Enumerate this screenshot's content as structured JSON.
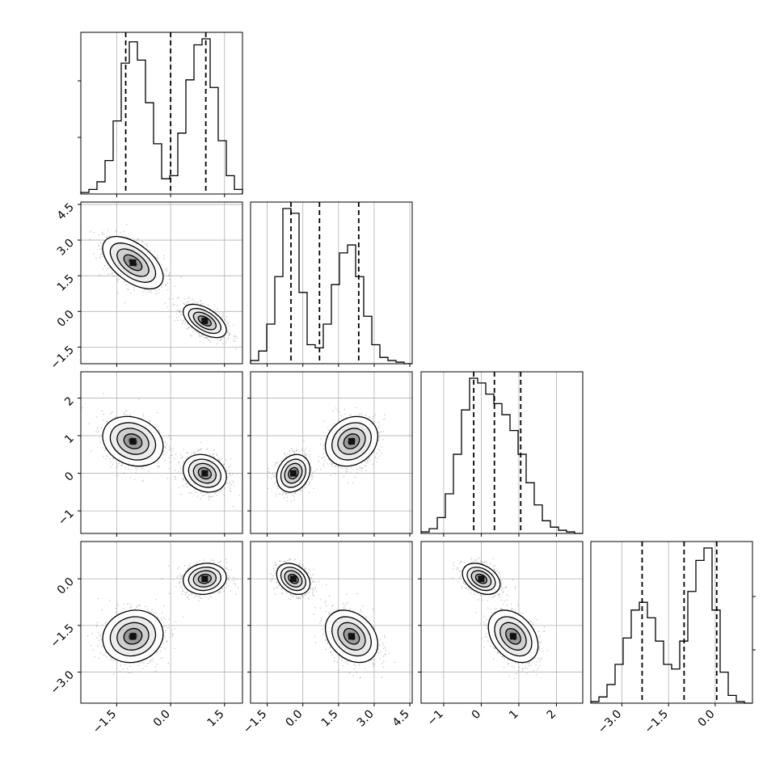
{
  "chart_data": {
    "type": "corner",
    "grid": true,
    "n_params": 4,
    "parameters": [
      {
        "index": 0,
        "range": [
          -2.5,
          2.0
        ],
        "ticks": [
          -1.5,
          0.0,
          1.5
        ],
        "tick_labels": [
          "−1.5",
          "0.0",
          "1.5"
        ],
        "quantiles": [
          -1.25,
          0.0,
          0.98
        ]
      },
      {
        "index": 1,
        "range": [
          -2.2,
          4.6
        ],
        "ticks": [
          -1.5,
          0.0,
          1.5,
          3.0,
          4.5
        ],
        "tick_labels": [
          "−1.5",
          "0.0",
          "1.5",
          "3.0",
          "4.5"
        ],
        "quantiles": [
          -0.5,
          0.7,
          2.35
        ]
      },
      {
        "index": 2,
        "range": [
          -1.6,
          2.7
        ],
        "ticks": [
          -1,
          0,
          1,
          2
        ],
        "tick_labels": [
          "−1",
          "0",
          "1",
          "2"
        ],
        "quantiles": [
          -0.2,
          0.35,
          1.05
        ]
      },
      {
        "index": 3,
        "range": [
          -4.0,
          1.2
        ],
        "ticks": [
          -3.0,
          -1.5,
          0.0
        ],
        "tick_labels": [
          "−3.0",
          "−1.5",
          "0.0"
        ],
        "quantiles": [
          -2.35,
          -1.0,
          0.05
        ]
      }
    ],
    "histograms": [
      {
        "param": 0,
        "bins": 20,
        "counts": [
          0.01,
          0.03,
          0.08,
          0.22,
          0.48,
          0.86,
          1.0,
          0.88,
          0.6,
          0.33,
          0.1,
          0.12,
          0.4,
          0.75,
          0.98,
          1.02,
          0.7,
          0.35,
          0.12,
          0.03
        ]
      },
      {
        "param": 1,
        "bins": 20,
        "counts": [
          0.02,
          0.08,
          0.25,
          0.55,
          0.98,
          0.95,
          0.45,
          0.12,
          0.1,
          0.25,
          0.5,
          0.7,
          0.75,
          0.55,
          0.3,
          0.12,
          0.04,
          0.02,
          0.01,
          0.0
        ]
      },
      {
        "param": 2,
        "bins": 20,
        "counts": [
          0.01,
          0.03,
          0.1,
          0.25,
          0.5,
          0.78,
          0.98,
          0.95,
          0.88,
          0.82,
          0.75,
          0.65,
          0.5,
          0.32,
          0.18,
          0.08,
          0.04,
          0.02,
          0.01,
          0.0
        ]
      },
      {
        "param": 3,
        "bins": 20,
        "counts": [
          0.01,
          0.04,
          0.12,
          0.25,
          0.42,
          0.6,
          0.65,
          0.55,
          0.4,
          0.25,
          0.22,
          0.4,
          0.72,
          0.92,
          1.0,
          0.6,
          0.2,
          0.05,
          0.01,
          0.0
        ]
      }
    ],
    "modes": [
      {
        "center": [
          -1.05,
          2.05,
          0.85,
          -1.85
        ],
        "sigma": [
          0.42,
          0.55,
          0.33,
          0.42
        ],
        "weight": 0.5
      },
      {
        "center": [
          0.95,
          -0.4,
          0.0,
          0.0
        ],
        "sigma": [
          0.3,
          0.35,
          0.25,
          0.25
        ],
        "weight": 0.5
      }
    ]
  }
}
